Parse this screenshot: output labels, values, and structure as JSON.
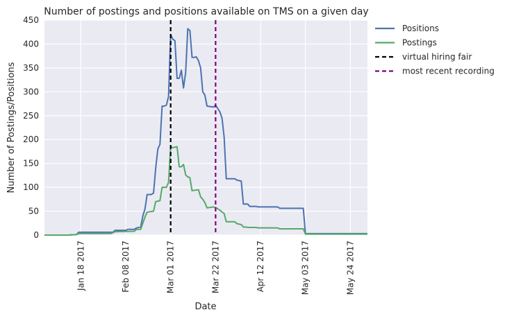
{
  "chart_data": {
    "type": "line",
    "title": "Number of postings and positions available on TMS on a given day",
    "xlabel": "Date",
    "ylabel": "Number of Postings/Positions",
    "xlim": [
      "2017-01-01",
      "2017-06-01"
    ],
    "ylim": [
      0,
      450
    ],
    "yticks": [
      0,
      50,
      100,
      150,
      200,
      250,
      300,
      350,
      400,
      450
    ],
    "xticks": [
      {
        "date": "2017-01-18",
        "label": "Jan 18 2017"
      },
      {
        "date": "2017-02-08",
        "label": "Feb 08 2017"
      },
      {
        "date": "2017-03-01",
        "label": "Mar 01 2017"
      },
      {
        "date": "2017-03-22",
        "label": "Mar 22 2017"
      },
      {
        "date": "2017-04-12",
        "label": "Apr 12 2017"
      },
      {
        "date": "2017-05-03",
        "label": "May 03 2017"
      },
      {
        "date": "2017-05-24",
        "label": "May 24 2017"
      }
    ],
    "grid": true,
    "legend_position": "outside-right",
    "series": [
      {
        "name": "Positions",
        "color": "#4c72b0",
        "points": [
          [
            "2017-01-01",
            0
          ],
          [
            "2017-01-12",
            0
          ],
          [
            "2017-01-16",
            1
          ],
          [
            "2017-01-17",
            6
          ],
          [
            "2017-01-24",
            6
          ],
          [
            "2017-02-01",
            6
          ],
          [
            "2017-02-02",
            6
          ],
          [
            "2017-02-03",
            10
          ],
          [
            "2017-02-08",
            10
          ],
          [
            "2017-02-09",
            12
          ],
          [
            "2017-02-12",
            12
          ],
          [
            "2017-02-13",
            15
          ],
          [
            "2017-02-15",
            17
          ],
          [
            "2017-02-16",
            40
          ],
          [
            "2017-02-17",
            55
          ],
          [
            "2017-02-18",
            85
          ],
          [
            "2017-02-19",
            85
          ],
          [
            "2017-02-20",
            85
          ],
          [
            "2017-02-21",
            88
          ],
          [
            "2017-02-22",
            140
          ],
          [
            "2017-02-23",
            180
          ],
          [
            "2017-02-24",
            190
          ],
          [
            "2017-02-25",
            270
          ],
          [
            "2017-02-26",
            270
          ],
          [
            "2017-02-27",
            272
          ],
          [
            "2017-02-28",
            290
          ],
          [
            "2017-03-01",
            420
          ],
          [
            "2017-03-02",
            410
          ],
          [
            "2017-03-03",
            407
          ],
          [
            "2017-03-04",
            328
          ],
          [
            "2017-03-05",
            328
          ],
          [
            "2017-03-06",
            345
          ],
          [
            "2017-03-07",
            308
          ],
          [
            "2017-03-08",
            340
          ],
          [
            "2017-03-09",
            432
          ],
          [
            "2017-03-10",
            428
          ],
          [
            "2017-03-11",
            372
          ],
          [
            "2017-03-12",
            372
          ],
          [
            "2017-03-13",
            373
          ],
          [
            "2017-03-14",
            365
          ],
          [
            "2017-03-15",
            350
          ],
          [
            "2017-03-16",
            300
          ],
          [
            "2017-03-17",
            293
          ],
          [
            "2017-03-18",
            270
          ],
          [
            "2017-03-21",
            268
          ],
          [
            "2017-03-22",
            272
          ],
          [
            "2017-03-23",
            265
          ],
          [
            "2017-03-24",
            258
          ],
          [
            "2017-03-25",
            245
          ],
          [
            "2017-03-26",
            205
          ],
          [
            "2017-03-27",
            118
          ],
          [
            "2017-03-31",
            118
          ],
          [
            "2017-04-01",
            115
          ],
          [
            "2017-04-03",
            113
          ],
          [
            "2017-04-04",
            65
          ],
          [
            "2017-04-06",
            65
          ],
          [
            "2017-04-07",
            60
          ],
          [
            "2017-04-10",
            60
          ],
          [
            "2017-04-11",
            59
          ],
          [
            "2017-04-20",
            59
          ],
          [
            "2017-04-21",
            56
          ],
          [
            "2017-05-02",
            56
          ],
          [
            "2017-05-03",
            3
          ],
          [
            "2017-06-01",
            3
          ]
        ]
      },
      {
        "name": "Postings",
        "color": "#55a868",
        "points": [
          [
            "2017-01-01",
            0
          ],
          [
            "2017-01-12",
            0
          ],
          [
            "2017-01-16",
            1
          ],
          [
            "2017-01-17",
            3
          ],
          [
            "2017-02-01",
            3
          ],
          [
            "2017-02-03",
            7
          ],
          [
            "2017-02-12",
            8
          ],
          [
            "2017-02-13",
            12
          ],
          [
            "2017-02-15",
            12
          ],
          [
            "2017-02-16",
            25
          ],
          [
            "2017-02-17",
            38
          ],
          [
            "2017-02-18",
            48
          ],
          [
            "2017-02-21",
            50
          ],
          [
            "2017-02-22",
            70
          ],
          [
            "2017-02-24",
            72
          ],
          [
            "2017-02-25",
            100
          ],
          [
            "2017-02-27",
            100
          ],
          [
            "2017-02-28",
            110
          ],
          [
            "2017-03-01",
            185
          ],
          [
            "2017-03-02",
            183
          ],
          [
            "2017-03-04",
            185
          ],
          [
            "2017-03-05",
            143
          ],
          [
            "2017-03-06",
            143
          ],
          [
            "2017-03-07",
            148
          ],
          [
            "2017-03-08",
            126
          ],
          [
            "2017-03-09",
            122
          ],
          [
            "2017-03-10",
            120
          ],
          [
            "2017-03-11",
            93
          ],
          [
            "2017-03-14",
            95
          ],
          [
            "2017-03-15",
            80
          ],
          [
            "2017-03-16",
            75
          ],
          [
            "2017-03-17",
            68
          ],
          [
            "2017-03-18",
            57
          ],
          [
            "2017-03-21",
            59
          ],
          [
            "2017-03-22",
            58
          ],
          [
            "2017-03-24",
            52
          ],
          [
            "2017-03-26",
            45
          ],
          [
            "2017-03-27",
            28
          ],
          [
            "2017-03-31",
            28
          ],
          [
            "2017-04-01",
            24
          ],
          [
            "2017-04-03",
            22
          ],
          [
            "2017-04-04",
            17
          ],
          [
            "2017-04-07",
            16
          ],
          [
            "2017-04-10",
            16
          ],
          [
            "2017-04-11",
            15
          ],
          [
            "2017-04-20",
            15
          ],
          [
            "2017-04-21",
            13
          ],
          [
            "2017-05-02",
            13
          ],
          [
            "2017-05-03",
            2
          ],
          [
            "2017-06-01",
            2
          ]
        ]
      }
    ],
    "vlines": [
      {
        "name": "virtual hiring fair",
        "date": "2017-03-01",
        "color": "#000000"
      },
      {
        "name": "most recent recording",
        "date": "2017-03-22",
        "color": "#800080"
      }
    ]
  }
}
